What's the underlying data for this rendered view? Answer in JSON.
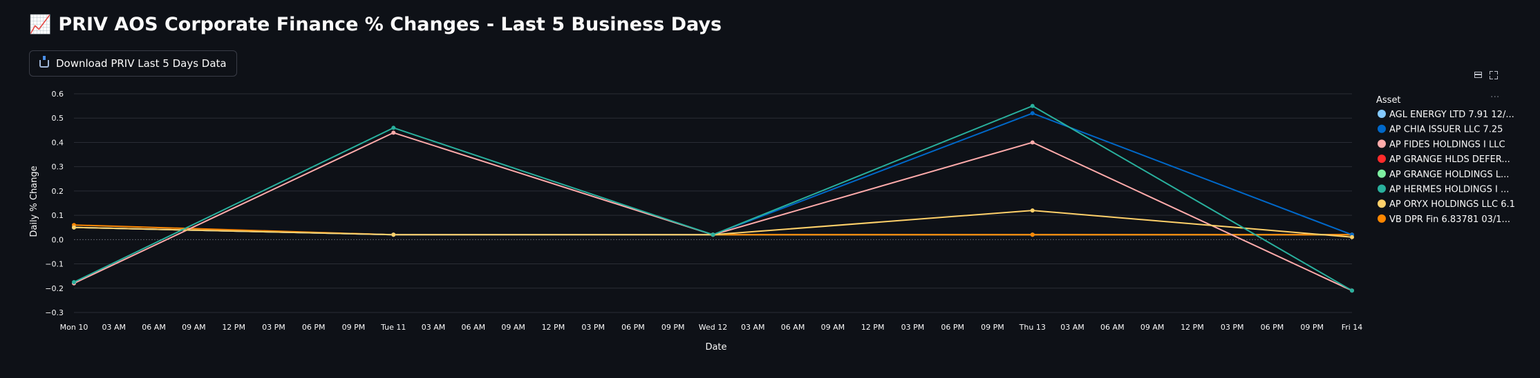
{
  "header": {
    "emoji": "📈",
    "title": "PRIV AOS Corporate Finance % Changes - Last 5 Business Days"
  },
  "toolbar": {
    "download_label": "Download PRIV Last 5 Days Data",
    "download_icon": "inbox-tray-icon",
    "table_icon": "table-icon",
    "fullscreen_icon": "fullscreen-icon",
    "more_icon": "more-icon"
  },
  "chart_data": {
    "type": "line",
    "xlabel": "Date",
    "ylabel": "Daily % Change",
    "ylim": [
      -0.3,
      0.6
    ],
    "yticks": [
      -0.3,
      -0.2,
      -0.1,
      0.0,
      0.1,
      0.2,
      0.3,
      0.4,
      0.5,
      0.6
    ],
    "x": [
      "Mon 10",
      "Tue 11",
      "Wed 12",
      "Thu 13",
      "Fri 14"
    ],
    "xtick_labels": [
      "Mon 10",
      "03 AM",
      "06 AM",
      "09 AM",
      "12 PM",
      "03 PM",
      "06 PM",
      "09 PM",
      "Tue 11",
      "03 AM",
      "06 AM",
      "09 AM",
      "12 PM",
      "03 PM",
      "06 PM",
      "09 PM",
      "Wed 12",
      "03 AM",
      "06 AM",
      "09 AM",
      "12 PM",
      "03 PM",
      "06 PM",
      "09 PM",
      "Thu 13",
      "03 AM",
      "06 AM",
      "09 AM",
      "12 PM",
      "03 PM",
      "06 PM",
      "09 PM",
      "Fri 14"
    ],
    "grid": true,
    "legend_title": "Asset",
    "legend_position": "right",
    "series": [
      {
        "name": "AGL ENERGY LTD 7.91 12/...",
        "color": "#83c9ff",
        "values": [
          0.05,
          0.02,
          0.02,
          0.02,
          0.02
        ]
      },
      {
        "name": "AP CHIA ISSUER LLC 7.25",
        "color": "#0068c9",
        "values": [
          0.05,
          0.02,
          0.02,
          0.52,
          0.02
        ]
      },
      {
        "name": "AP FIDES HOLDINGS I LLC",
        "color": "#ffabab",
        "values": [
          -0.18,
          0.44,
          0.02,
          0.4,
          -0.21
        ]
      },
      {
        "name": "AP GRANGE HLDS DEFER...",
        "color": "#ff2b2b",
        "values": [
          0.05,
          0.02,
          0.02,
          0.02,
          0.02
        ]
      },
      {
        "name": "AP GRANGE HOLDINGS L...",
        "color": "#7defa1",
        "values": [
          0.05,
          0.02,
          0.02,
          0.02,
          0.02
        ]
      },
      {
        "name": "AP HERMES HOLDINGS I ...",
        "color": "#29b09d",
        "values": [
          -0.175,
          0.46,
          0.02,
          0.55,
          -0.21
        ]
      },
      {
        "name": "AP ORYX HOLDINGS LLC 6.1",
        "color": "#ffd16a",
        "values": [
          0.05,
          0.02,
          0.02,
          0.12,
          0.01
        ]
      },
      {
        "name": "VB DPR Fin 6.83781 03/1...",
        "color": "#ff8700",
        "values": [
          0.06,
          0.02,
          0.02,
          0.02,
          0.02
        ]
      }
    ]
  }
}
